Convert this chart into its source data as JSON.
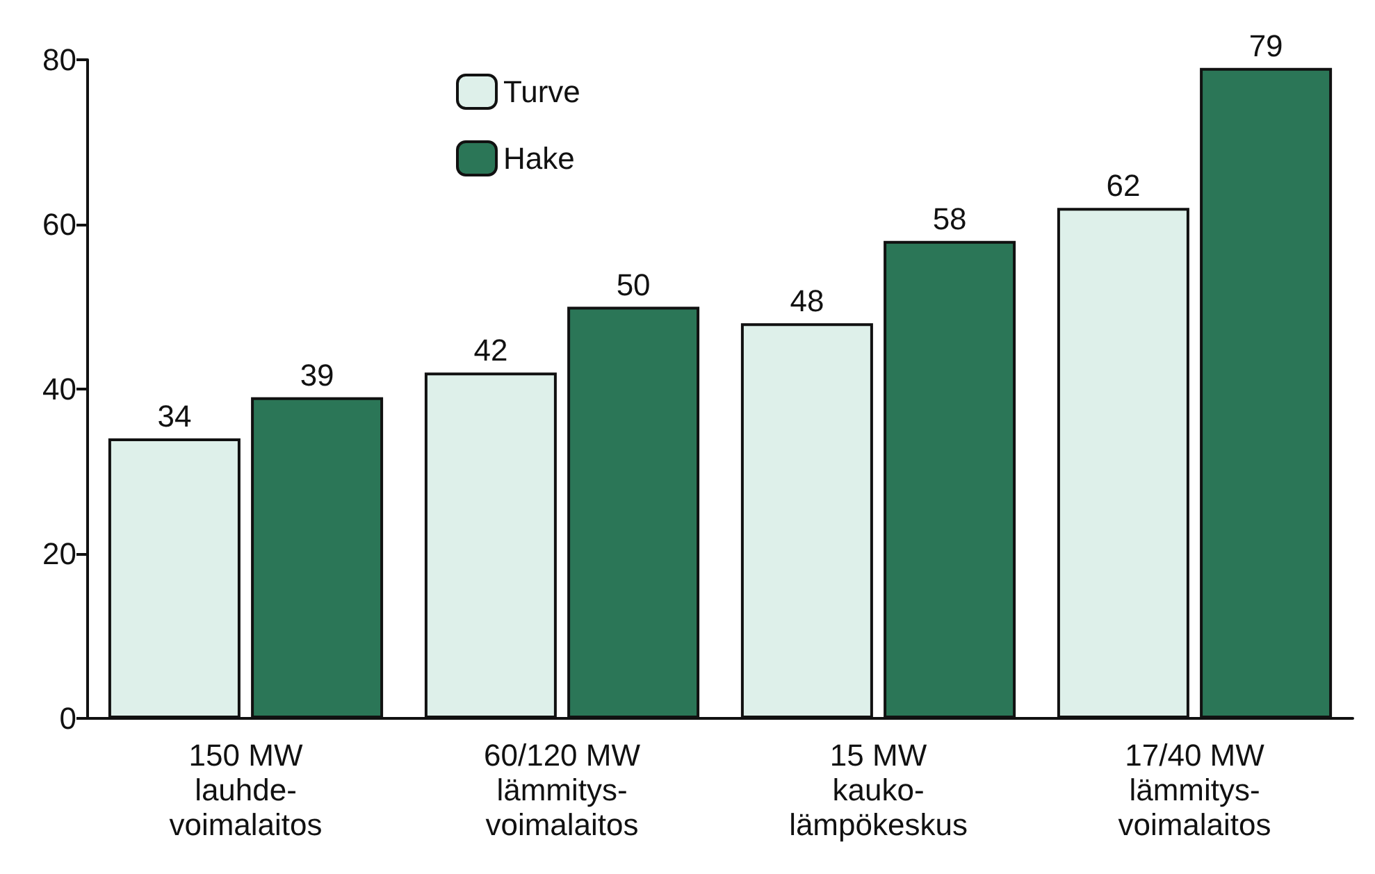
{
  "chart_data": {
    "type": "bar",
    "categories": [
      "150 MW\nlauhde-\nvoimalaitos",
      "60/120 MW\nlämmitys-\nvoimalaitos",
      "15 MW\nkauko-\nlämpökeskus",
      "17/40 MW\nlämmitys-\nvoimalaitos"
    ],
    "series": [
      {
        "name": "Turve",
        "color": "#def0ea",
        "values": [
          34,
          42,
          48,
          62
        ]
      },
      {
        "name": "Hake",
        "color": "#2b7657",
        "values": [
          39,
          50,
          58,
          79
        ]
      }
    ],
    "ylim": [
      0,
      80
    ],
    "yticks": [
      0,
      20,
      40,
      60,
      80
    ],
    "data_labels": true,
    "legend": "top left",
    "grid": false
  }
}
